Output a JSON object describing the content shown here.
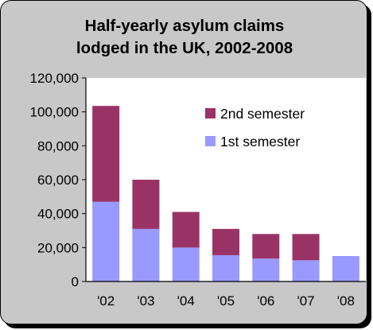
{
  "chart_data": {
    "type": "bar",
    "stacked": true,
    "title_line1": "Half-yearly asylum claims",
    "title_line2": "lodged in the UK, 2002-2008",
    "categories": [
      "'02",
      "'03",
      "'04",
      "'05",
      "'06",
      "'07",
      "'08"
    ],
    "series": [
      {
        "name": "1st semester",
        "color": "#9999ff",
        "values": [
          47000,
          31000,
          20000,
          15500,
          13500,
          12500,
          15000
        ]
      },
      {
        "name": "2nd semester",
        "color": "#993366",
        "values": [
          56500,
          29000,
          21000,
          15500,
          14500,
          15500,
          0
        ]
      }
    ],
    "ylim": [
      0,
      120000
    ],
    "yticks": [
      "0",
      "20,000",
      "40,000",
      "60,000",
      "80,000",
      "100,000",
      "120,000"
    ],
    "legend": {
      "position": "top-right",
      "order": [
        "2nd semester",
        "1st semester"
      ]
    },
    "grid": false,
    "plot_background": "#ffffff"
  }
}
